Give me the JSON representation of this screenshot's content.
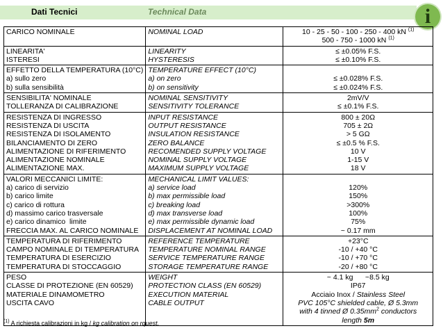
{
  "header": {
    "title": "Dati Tecnici",
    "subtitle": "Technical Data",
    "icon": "i"
  },
  "table": {
    "rows": [
      {
        "it": [
          "CARICO NOMINALE"
        ],
        "en": [
          "NOMINAL LOAD"
        ],
        "val": [
          [
            "10 - 25 - 50 - 100 - 250 - 400 kN ",
            {
              "sup": "(1)"
            }
          ],
          [
            "500 - 750 - 1000 kN ",
            {
              "sup": "(1)"
            }
          ]
        ]
      },
      {
        "it": [
          "LINEARITA'",
          "ISTERESI"
        ],
        "en": [
          "LINEARITY",
          "HYSTERESIS"
        ],
        "val": [
          "≤ ±0.05% F.S.",
          "≤ ±0.10% F.S."
        ]
      },
      {
        "it": [
          "EFFETTO DELLA TEMPERATURA (10°C)",
          "a) sullo zero",
          "b) sulla sensibilità"
        ],
        "en": [
          "TEMPERATURE EFFECT (10°C)",
          "a) on zero",
          "b) on sensitivity"
        ],
        "val": [
          null,
          "≤ ±0.028% F.S.",
          "≤ ±0.024% F.S."
        ]
      },
      {
        "it": [
          "SENSIBILITA' NOMINALE",
          "TOLLERANZA DI CALIBRAZIONE"
        ],
        "en": [
          "NOMINAL SENSITIVITY",
          "SENSITIVITY TOLERANCE"
        ],
        "val": [
          "2mV/V",
          "≤ ±0.1% F.S."
        ]
      },
      {
        "it": [
          "RESISTENZA DI INGRESSO",
          "RESISTENZA DI USCITA",
          "RESISTENZA DI ISOLAMENTO",
          "BILANCIAMENTO DI ZERO",
          "ALIMENTAZIONE DI RIFERIMENTO",
          "ALIMENTAZIONE NOMINALE",
          "ALIMENTAZIONE MAX."
        ],
        "en": [
          "INPUT RESISTANCE",
          "OUTPUT RESISTANCE",
          "INSULATION RESISTANCE",
          "ZERO BALANCE",
          "RECOMENDED SUPPLY VOLTAGE",
          "NOMINAL SUPPLY VOLTAGE",
          "MAXIMUM SUPPLY VOLTAGE"
        ],
        "val": [
          "800 ± 20Ω",
          "705 ± 2Ω",
          "> 5 GΩ",
          "≤ ±0.5 % F.S.",
          "10 V",
          "1-15 V",
          "18 V"
        ]
      },
      {
        "it": [
          "VALORI MECCANICI LIMITE:",
          "a) carico di servizio",
          "b) carico limite",
          "c) carico di rottura",
          "d) massimo carico trasversale",
          "e) carico dinamico  limite",
          "FRECCIA MAX. AL CARICO NOMINALE"
        ],
        "en": [
          "MECHANICAL LIMIT VALUES:",
          "a) service load",
          "b) max permissible load",
          "c) breaking load",
          "d) max transverse load",
          "e) max permissible dynamic load",
          "DISPLACEMENT AT NOMINAL LOAD"
        ],
        "val": [
          null,
          "120%",
          "150%",
          ">300%",
          "100%",
          "75%",
          "~ 0.17 mm"
        ]
      },
      {
        "it": [
          "TEMPERATURA DI RIFERIMENTO",
          "CAMPO NOMINALE DI TEMPERATURA",
          "TEMPERATURA DI ESERCIZIO",
          "TEMPERATURA DI STOCCAGGIO"
        ],
        "en": [
          "REFERENCE TEMPERATURE",
          "TEMPERATURE NOMINAL RANGE",
          "SERVICE TEMPERATURE RANGE",
          "STORAGE TEMPERATURE RANGE"
        ],
        "val": [
          "+23°C",
          "-10 / +40 °C",
          "-10 / +70 °C",
          "-20 / +80 °C"
        ]
      },
      {
        "it": [
          "PESO",
          "CLASSE DI PROTEZIONE (EN 60529)",
          "MATERIALE DINAMOMETRO",
          "USCITA CAVO"
        ],
        "en": [
          "WEIGHT",
          "PROTECTION CLASS (EN 60529)",
          "EXECUTION MATERIAL",
          "CABLE OUTPUT"
        ],
        "val": [
          "~ 4.1 kg      ~8.5 kg",
          "IP67",
          [
            "Acciaio Inox / ",
            {
              "i": "Stainless Steel"
            }
          ],
          [
            {
              "i": "PVC 105°C shielded cable, Ø 5.3mm"
            }
          ],
          [
            {
              "i": "with 4 tinned Ø 0.35mm"
            },
            {
              "sup": "2"
            },
            {
              "i": " conductors"
            }
          ],
          [
            {
              "i": "length "
            },
            {
              "b": "5m"
            }
          ]
        ]
      }
    ]
  },
  "footnote": [
    {
      "sup": "(1)"
    },
    " A richiesta calibrazioni in kg / ",
    {
      "i": "kg calibration on rquest."
    }
  ]
}
